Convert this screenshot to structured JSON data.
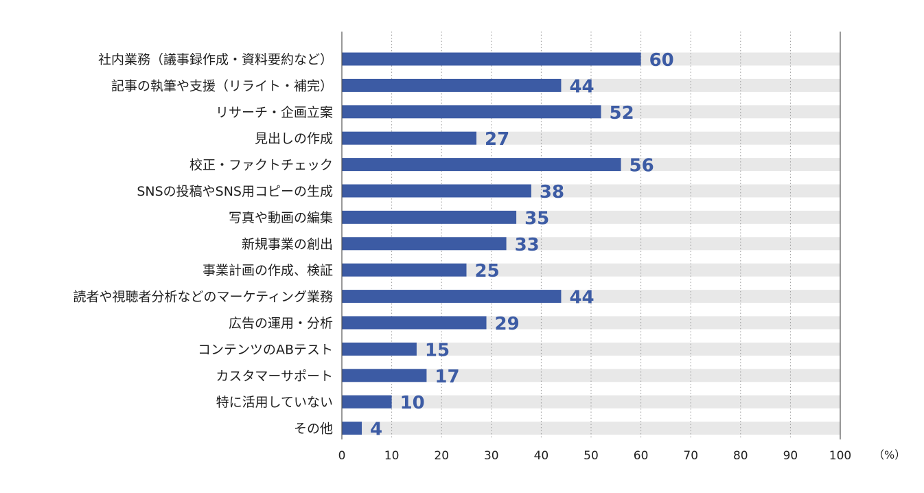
{
  "chart_data": {
    "type": "bar",
    "orientation": "horizontal",
    "categories": [
      "社内業務（議事録作成・資料要約など）",
      "記事の執筆や支援（リライト・補完）",
      "リサーチ・企画立案",
      "見出しの作成",
      "校正・ファクトチェック",
      "SNSの投稿やSNS用コピーの生成",
      "写真や動画の編集",
      "新規事業の創出",
      "事業計画の作成、検証",
      "読者や視聴者分析などのマーケティング業務",
      "広告の運用・分析",
      "コンテンツのABテスト",
      "カスタマーサポート",
      "特に活用していない",
      "その他"
    ],
    "values": [
      60,
      44,
      52,
      27,
      56,
      38,
      35,
      33,
      25,
      44,
      29,
      15,
      17,
      10,
      4
    ],
    "x_ticks": [
      "0",
      "10",
      "20",
      "30",
      "40",
      "50",
      "60",
      "70",
      "80",
      "90",
      "100"
    ],
    "xlim": [
      0,
      100
    ],
    "unit_label": "（%）",
    "grid": "vertical dotted",
    "colors": {
      "bar": "#3c5ba4",
      "track": "#e8e8e8",
      "value_text": "#3c5ba4",
      "axis": "#555555",
      "grid": "#999999"
    }
  }
}
